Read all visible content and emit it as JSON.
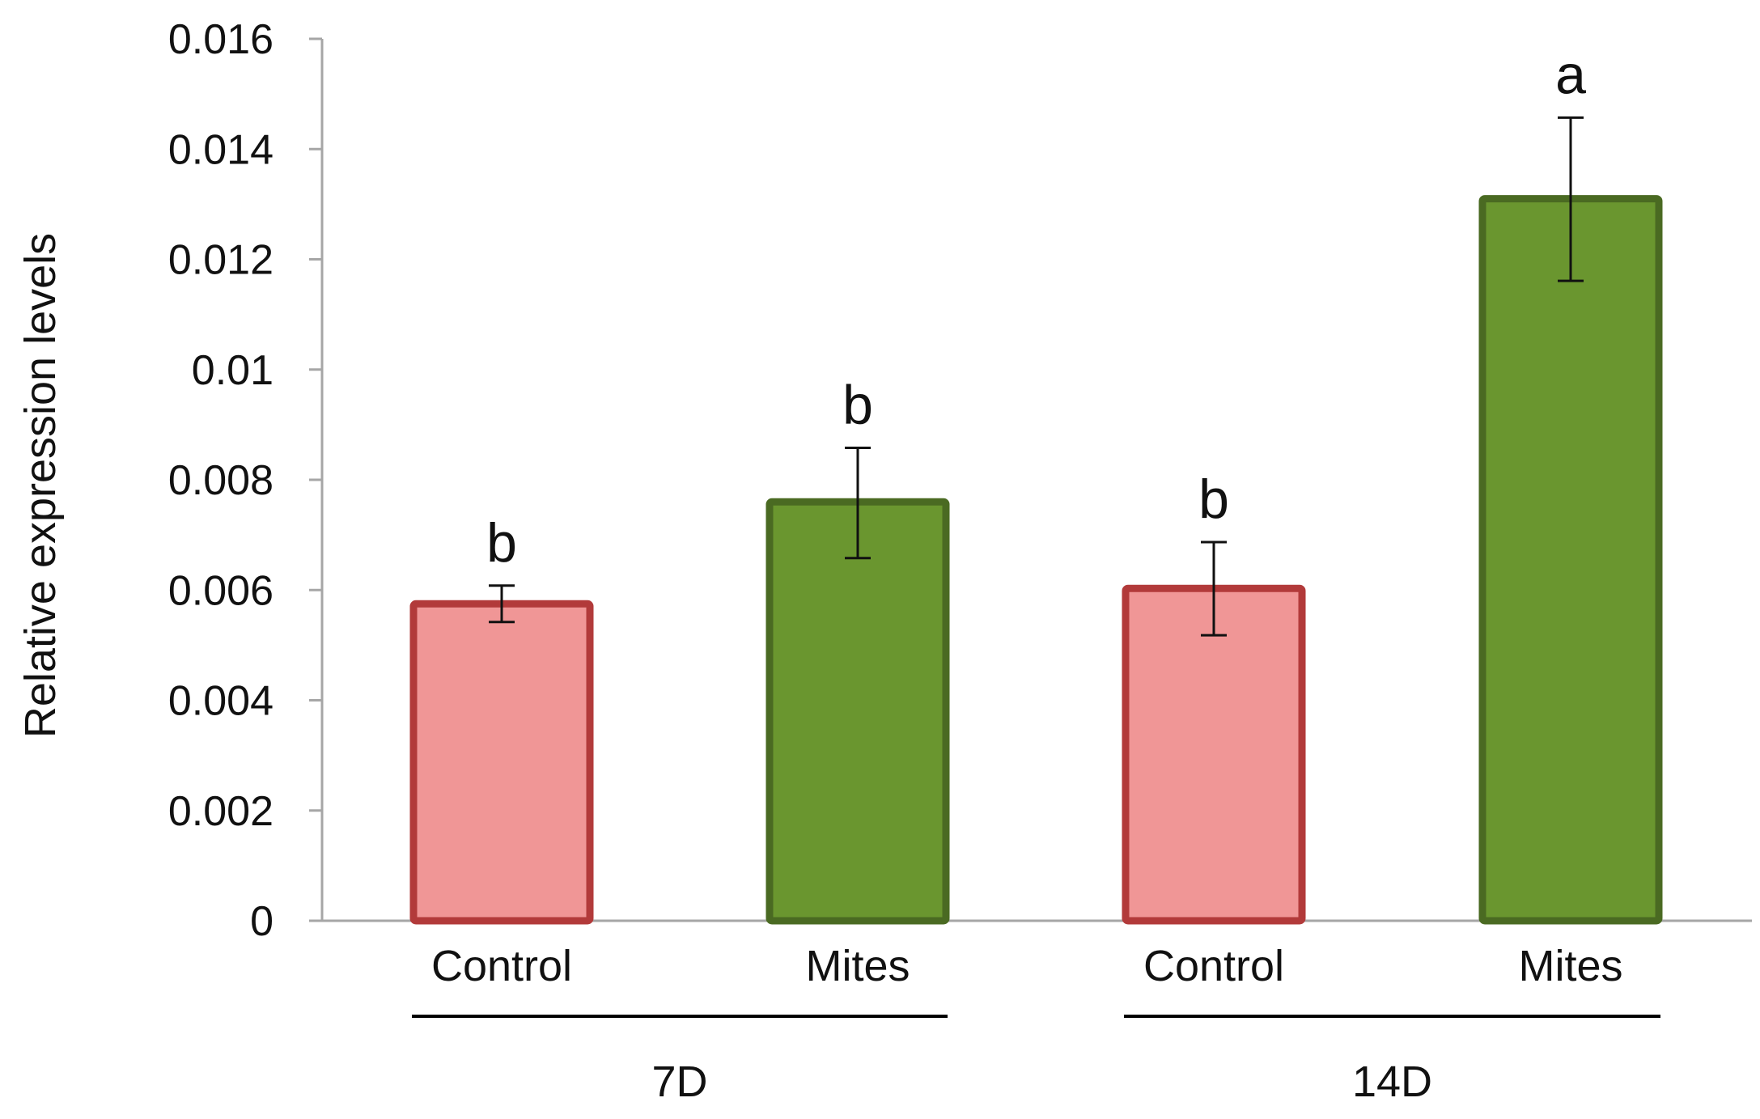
{
  "chart_data": {
    "type": "bar",
    "title": "",
    "xlabel": "",
    "ylabel": "Relative expression levels",
    "ylim": [
      0,
      0.016
    ],
    "yticks": [
      "0",
      "0.002",
      "0.004",
      "0.006",
      "0.008",
      "0.01",
      "0.012",
      "0.014",
      "0.016"
    ],
    "grid": false,
    "categories": [
      "Control",
      "Mites",
      "Control",
      "Mites"
    ],
    "groups": [
      {
        "label": "7D",
        "members": [
          0,
          1
        ]
      },
      {
        "label": "14D",
        "members": [
          2,
          3
        ]
      }
    ],
    "values": [
      0.00575,
      0.0076,
      0.00603,
      0.0131
    ],
    "error_bars": [
      {
        "low": 0.00542,
        "high": 0.00608
      },
      {
        "low": 0.00658,
        "high": 0.00858
      },
      {
        "low": 0.00518,
        "high": 0.00687
      },
      {
        "low": 0.01161,
        "high": 0.01457
      }
    ],
    "significance_letters": [
      "b",
      "b",
      "b",
      "a"
    ],
    "bar_colors": [
      {
        "fill": "#f09696",
        "stroke": "#b23a3a"
      },
      {
        "fill": "#6a962f",
        "stroke": "#4a6a22"
      },
      {
        "fill": "#f09696",
        "stroke": "#b23a3a"
      },
      {
        "fill": "#6a962f",
        "stroke": "#4a6a22"
      }
    ],
    "axis_color": "#a6a6a6"
  }
}
